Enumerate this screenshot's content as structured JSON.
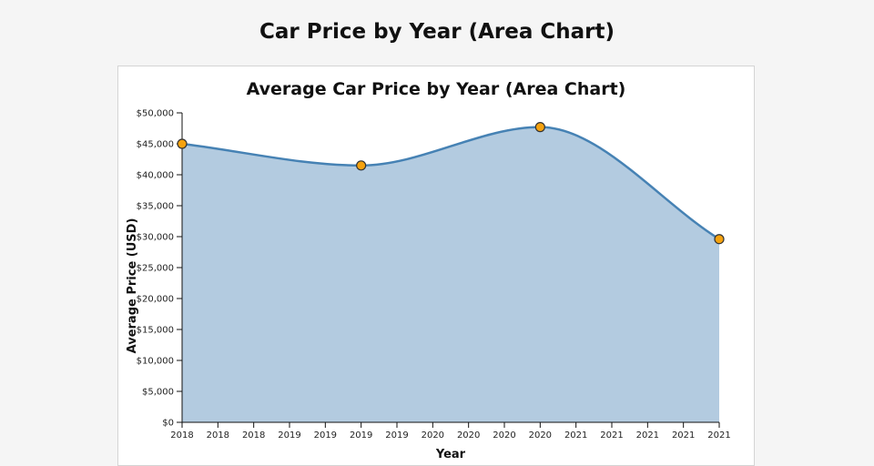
{
  "page": {
    "title": "Car Price by Year (Area Chart)"
  },
  "chart_data": {
    "type": "area",
    "title": "Average Car Price by Year (Area Chart)",
    "xlabel": "Year",
    "ylabel": "Average Price (USD)",
    "x": [
      2018,
      2019,
      2020,
      2021
    ],
    "series": [
      {
        "values": [
          45000,
          41500,
          47700,
          29600
        ]
      }
    ],
    "xlim": [
      2018,
      2021
    ],
    "ylim": [
      0,
      50000
    ],
    "y_ticks": [
      "$0",
      "$5,000",
      "$10,000",
      "$15,000",
      "$20,000",
      "$25,000",
      "$30,000",
      "$35,000",
      "$40,000",
      "$45,000",
      "$50,000"
    ],
    "x_tick_labels": [
      "2018",
      "2018",
      "2018",
      "2019",
      "2019",
      "2019",
      "2019",
      "2020",
      "2020",
      "2020",
      "2020",
      "2021",
      "2021",
      "2021",
      "2021",
      "2021"
    ],
    "grid": false,
    "legend": "none",
    "colors": {
      "area_fill": "#b3cbe0",
      "line": "#4682b4",
      "marker_fill": "#f5a20f",
      "marker_stroke": "#333333"
    }
  }
}
